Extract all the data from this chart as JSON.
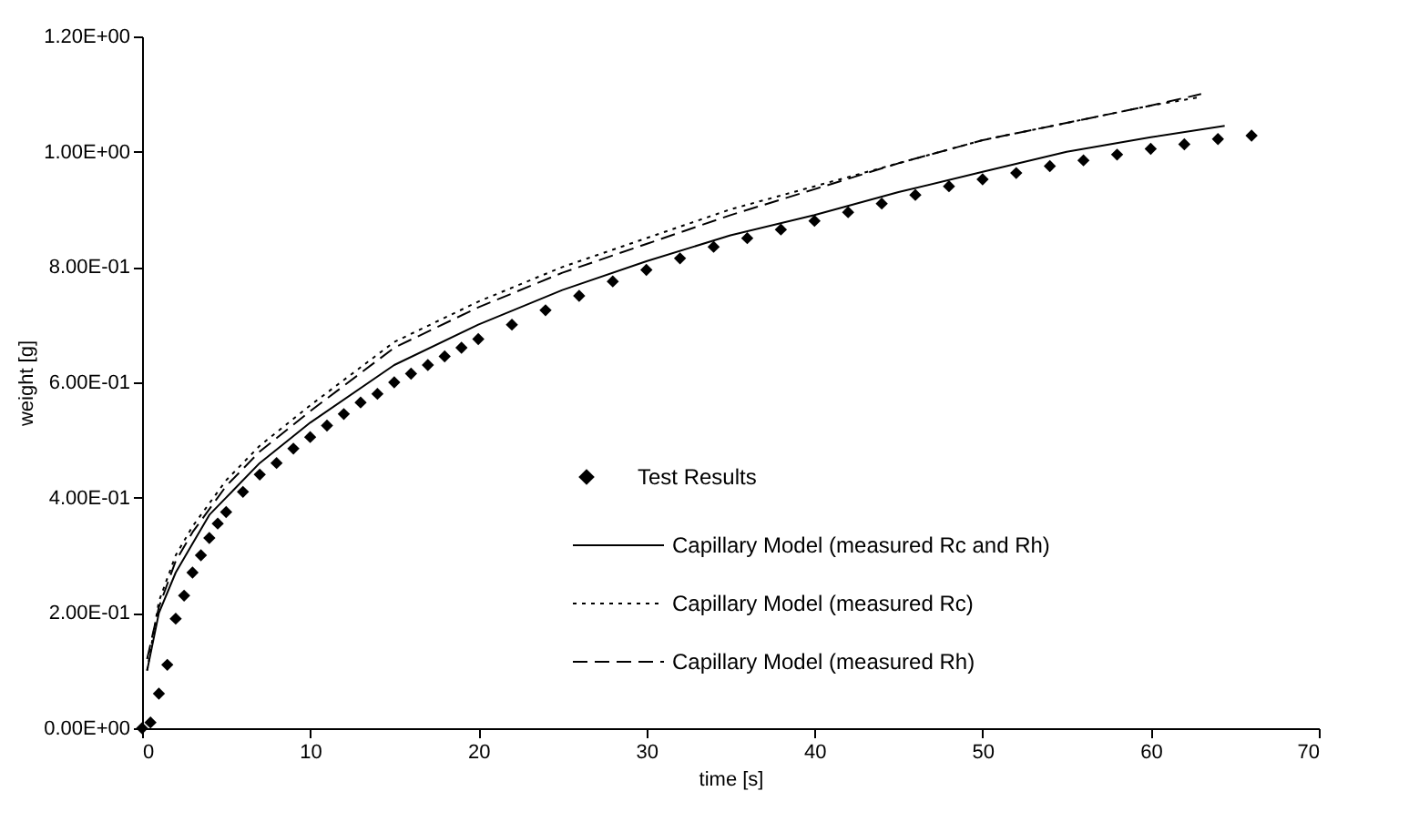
{
  "chart_data": {
    "type": "line",
    "xlabel": "time [s]",
    "ylabel": "weight [g]",
    "xlim": [
      0,
      70
    ],
    "xticks": [
      0,
      10,
      20,
      30,
      40,
      50,
      60,
      70
    ],
    "ylim": [
      0,
      1.2
    ],
    "yticks": [
      {
        "value": 0,
        "label": "0.00E+00"
      },
      {
        "value": 0.2,
        "label": "2.00E-01"
      },
      {
        "value": 0.4,
        "label": "4.00E-01"
      },
      {
        "value": 0.6,
        "label": "6.00E-01"
      },
      {
        "value": 0.8,
        "label": "8.00E-01"
      },
      {
        "value": 1.0,
        "label": "1.00E+00"
      },
      {
        "value": 1.2,
        "label": "1.20E+00"
      }
    ],
    "grid": false,
    "legend": "bottom right",
    "series": [
      {
        "name": "Test Results",
        "type": "scatter",
        "marker": "diamond",
        "color": "#000000",
        "x": [
          0,
          0.5,
          1,
          1.5,
          2,
          2.5,
          3,
          3.5,
          4,
          4.5,
          5,
          6,
          7,
          8,
          9,
          10,
          11,
          12,
          13,
          14,
          15,
          16,
          17,
          18,
          19,
          20,
          22,
          24,
          26,
          28,
          30,
          32,
          34,
          36,
          38,
          40,
          42,
          44,
          46,
          48,
          50,
          52,
          54,
          56,
          58,
          60,
          62,
          64,
          66
        ],
        "values": [
          0,
          0.01,
          0.06,
          0.11,
          0.19,
          0.23,
          0.27,
          0.3,
          0.33,
          0.355,
          0.375,
          0.41,
          0.44,
          0.46,
          0.485,
          0.505,
          0.525,
          0.545,
          0.565,
          0.58,
          0.6,
          0.615,
          0.63,
          0.645,
          0.66,
          0.675,
          0.7,
          0.725,
          0.75,
          0.775,
          0.795,
          0.815,
          0.835,
          0.85,
          0.865,
          0.88,
          0.895,
          0.91,
          0.925,
          0.94,
          0.952,
          0.963,
          0.975,
          0.985,
          0.995,
          1.005,
          1.013,
          1.022,
          1.028
        ]
      },
      {
        "name": "Capillary Model (measured Rc and Rh)",
        "line_style": "solid",
        "color": "#000000",
        "x": [
          0.3,
          1,
          2,
          3,
          4,
          5,
          7,
          10,
          15,
          20,
          25,
          30,
          35,
          40,
          45,
          50,
          55,
          60,
          64.4
        ],
        "values": [
          0.1,
          0.2,
          0.27,
          0.32,
          0.37,
          0.4,
          0.46,
          0.53,
          0.63,
          0.7,
          0.76,
          0.81,
          0.855,
          0.89,
          0.93,
          0.965,
          1.0,
          1.025,
          1.045
        ]
      },
      {
        "name": "Capillary Model (measured Rc)",
        "line_style": "dotted",
        "color": "#000000",
        "x": [
          0.3,
          1,
          2,
          3,
          4,
          5,
          7,
          10,
          15,
          20,
          25,
          30,
          35,
          40,
          45,
          50,
          55,
          60,
          63
        ],
        "values": [
          0.1,
          0.22,
          0.3,
          0.35,
          0.39,
          0.43,
          0.49,
          0.56,
          0.67,
          0.74,
          0.8,
          0.85,
          0.9,
          0.94,
          0.98,
          1.02,
          1.05,
          1.08,
          1.095
        ]
      },
      {
        "name": "Capillary Model (measured Rh)",
        "line_style": "dashed",
        "color": "#000000",
        "x": [
          0.3,
          1,
          2,
          3,
          4,
          5,
          7,
          10,
          15,
          20,
          25,
          30,
          35,
          40,
          45,
          50,
          55,
          60,
          63
        ],
        "values": [
          0.12,
          0.21,
          0.29,
          0.34,
          0.38,
          0.42,
          0.48,
          0.55,
          0.66,
          0.73,
          0.79,
          0.84,
          0.89,
          0.935,
          0.98,
          1.02,
          1.05,
          1.08,
          1.1
        ]
      }
    ]
  }
}
